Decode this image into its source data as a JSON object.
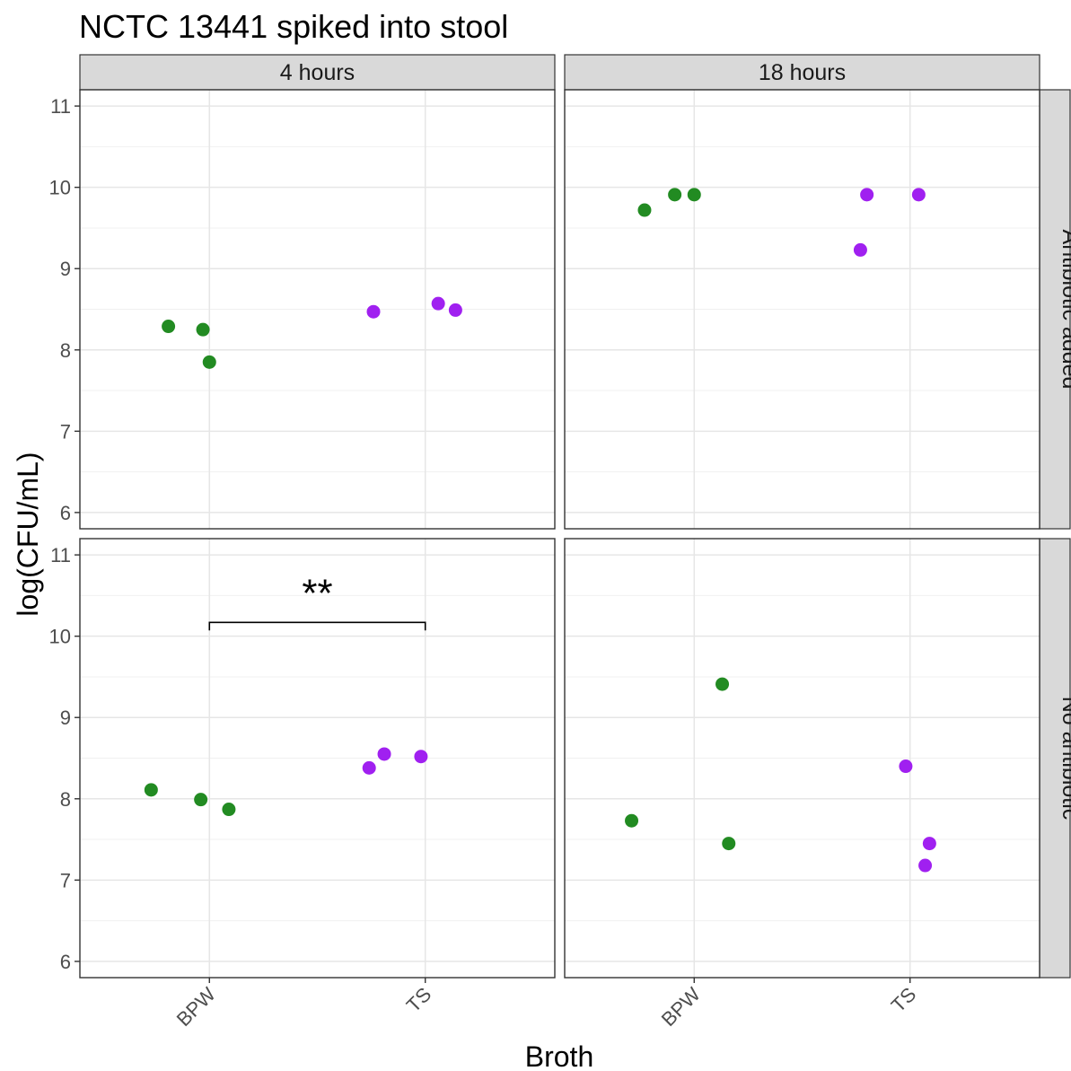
{
  "chart_data": {
    "type": "scatter",
    "title": "NCTC 13441 spiked into stool",
    "xlabel": "Broth",
    "ylabel": "log(CFU/mL)",
    "categories": [
      "BPW",
      "TS"
    ],
    "ylim": [
      5.8,
      11.2
    ],
    "y_ticks": [
      "6",
      "7",
      "8",
      "9",
      "10",
      "11"
    ],
    "grid": true,
    "colors": {
      "BPW": "#228B22",
      "TS": "#A020F0"
    },
    "col_facets": [
      "4 hours",
      "18 hours"
    ],
    "row_facets": [
      "Antibiotic added",
      "No antibiotic"
    ],
    "panels": [
      {
        "col": "4 hours",
        "row": "Antibiotic added",
        "points": [
          {
            "x": "BPW",
            "jitter": -0.19,
            "y": 8.29
          },
          {
            "x": "BPW",
            "jitter": -0.03,
            "y": 8.25
          },
          {
            "x": "BPW",
            "jitter": 0.0,
            "y": 7.85
          },
          {
            "x": "TS",
            "jitter": -0.24,
            "y": 8.47
          },
          {
            "x": "TS",
            "jitter": 0.06,
            "y": 8.57
          },
          {
            "x": "TS",
            "jitter": 0.14,
            "y": 8.49
          }
        ],
        "annotation": ""
      },
      {
        "col": "18 hours",
        "row": "Antibiotic added",
        "points": [
          {
            "x": "BPW",
            "jitter": -0.23,
            "y": 9.72
          },
          {
            "x": "BPW",
            "jitter": -0.09,
            "y": 9.91
          },
          {
            "x": "BPW",
            "jitter": 0.0,
            "y": 9.91
          },
          {
            "x": "TS",
            "jitter": -0.23,
            "y": 9.23
          },
          {
            "x": "TS",
            "jitter": -0.2,
            "y": 9.91
          },
          {
            "x": "TS",
            "jitter": 0.04,
            "y": 9.91
          }
        ],
        "annotation": ""
      },
      {
        "col": "4 hours",
        "row": "No antibiotic",
        "points": [
          {
            "x": "BPW",
            "jitter": -0.27,
            "y": 8.11
          },
          {
            "x": "BPW",
            "jitter": -0.04,
            "y": 7.99
          },
          {
            "x": "BPW",
            "jitter": 0.09,
            "y": 7.87
          },
          {
            "x": "TS",
            "jitter": -0.26,
            "y": 8.38
          },
          {
            "x": "TS",
            "jitter": -0.19,
            "y": 8.55
          },
          {
            "x": "TS",
            "jitter": -0.02,
            "y": 8.52
          }
        ],
        "annotation": "**",
        "bracket": {
          "from": "BPW",
          "to": "TS",
          "y": 10.17
        }
      },
      {
        "col": "18 hours",
        "row": "No antibiotic",
        "points": [
          {
            "x": "BPW",
            "jitter": -0.29,
            "y": 7.73
          },
          {
            "x": "BPW",
            "jitter": 0.13,
            "y": 9.41
          },
          {
            "x": "BPW",
            "jitter": 0.16,
            "y": 7.45
          },
          {
            "x": "TS",
            "jitter": -0.02,
            "y": 8.4
          },
          {
            "x": "TS",
            "jitter": 0.07,
            "y": 7.18
          },
          {
            "x": "TS",
            "jitter": 0.09,
            "y": 7.45
          }
        ],
        "annotation": ""
      }
    ]
  }
}
